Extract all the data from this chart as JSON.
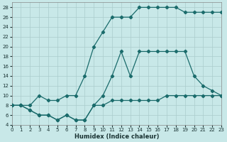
{
  "xlabel": "Humidex (Indice chaleur)",
  "bg_color": "#c8e8e8",
  "grid_color": "#aacccc",
  "line_color": "#1a6b6b",
  "curve1_x": [
    0,
    1,
    2,
    3,
    4,
    5,
    6,
    7,
    8,
    9,
    10,
    11,
    12,
    13,
    14,
    15,
    16,
    17,
    18,
    19,
    20,
    21,
    22,
    23
  ],
  "curve1_y": [
    8,
    8,
    8,
    10,
    9,
    9,
    10,
    10,
    14,
    20,
    23,
    26,
    26,
    26,
    28,
    28,
    28,
    28,
    28,
    27,
    27,
    27,
    27,
    27
  ],
  "curve2_x": [
    0,
    1,
    2,
    3,
    4,
    5,
    6,
    7,
    8,
    9,
    10,
    11,
    12,
    13,
    14,
    15,
    16,
    17,
    18,
    19,
    20,
    21,
    22,
    23
  ],
  "curve2_y": [
    8,
    8,
    7,
    6,
    6,
    5,
    6,
    5,
    5,
    8,
    10,
    14,
    19,
    14,
    19,
    19,
    19,
    19,
    19,
    19,
    14,
    12,
    11,
    10
  ],
  "curve3_x": [
    0,
    1,
    2,
    3,
    4,
    5,
    6,
    7,
    8,
    9,
    10,
    11,
    12,
    13,
    14,
    15,
    16,
    17,
    18,
    19,
    20,
    21,
    22,
    23
  ],
  "curve3_y": [
    8,
    8,
    7,
    6,
    6,
    5,
    6,
    5,
    5,
    8,
    8,
    9,
    9,
    9,
    9,
    9,
    9,
    10,
    10,
    10,
    10,
    10,
    10,
    10
  ],
  "xlim": [
    0,
    23
  ],
  "ylim": [
    4,
    29
  ],
  "yticks": [
    4,
    6,
    8,
    10,
    12,
    14,
    16,
    18,
    20,
    22,
    24,
    26,
    28
  ],
  "xticks": [
    0,
    1,
    2,
    3,
    4,
    5,
    6,
    7,
    8,
    9,
    10,
    11,
    12,
    13,
    14,
    15,
    16,
    17,
    18,
    19,
    20,
    21,
    22,
    23
  ],
  "tick_fontsize": 5,
  "xlabel_fontsize": 6
}
